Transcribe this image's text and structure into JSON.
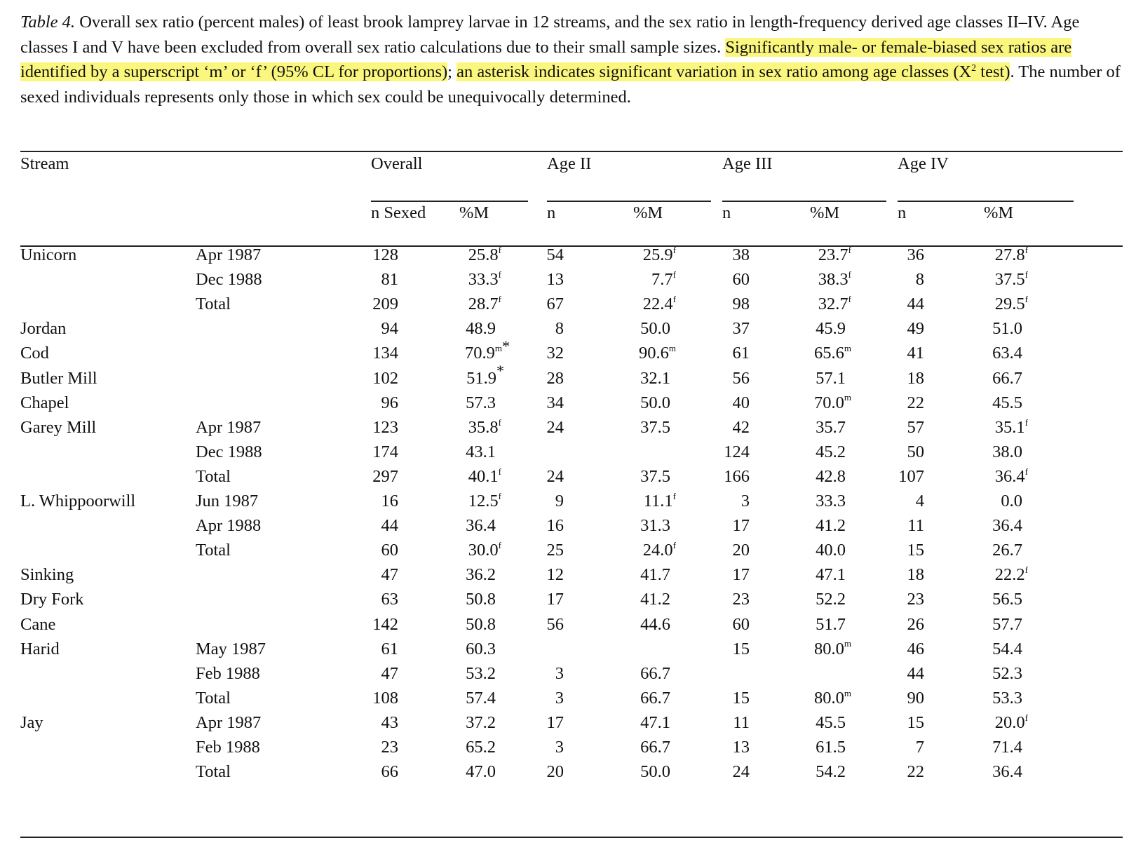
{
  "caption": {
    "label": "Table 4.",
    "text_plain_1": " Overall sex ratio (percent males) of least brook lamprey larvae in 12 streams, and the sex ratio in length-frequency derived age classes II–IV. Age classes I and V have been excluded from overall sex ratio calculations due to their small sample sizes. ",
    "text_highlight_1": "Significantly male- or female-biased sex ratios are identified by a superscript ‘m’ or ‘f’ (95% CL for proportions)",
    "text_plain_2": "; ",
    "text_highlight_2a": "an asterisk indicates significant variation in sex ratio among age classes (X",
    "text_highlight_2_sup": "2",
    "text_highlight_2b": " test)",
    "text_plain_3": ". The number of sexed individuals represents only those in which sex could be unequivocally determined."
  },
  "headers": {
    "stream": "Stream",
    "groups": [
      "Overall",
      "Age II",
      "Age III",
      "Age IV"
    ],
    "sub": [
      "n Sexed",
      "%M",
      "n",
      "%M",
      "n",
      "%M",
      "n",
      "%M"
    ]
  },
  "rows": [
    {
      "stream": "Unicorn",
      "date": "Apr 1987",
      "v": [
        "128",
        "25.8",
        "54",
        "25.9",
        "38",
        "23.7",
        "36",
        "27.8"
      ],
      "s": [
        "",
        "f",
        "",
        "f",
        "",
        "f",
        "",
        "f"
      ]
    },
    {
      "stream": "",
      "date": "Dec 1988",
      "v": [
        "81",
        "33.3",
        "13",
        "7.7",
        "60",
        "38.3",
        "8",
        "37.5"
      ],
      "s": [
        "",
        "f",
        "",
        "f",
        "",
        "f",
        "",
        "f"
      ]
    },
    {
      "stream": "",
      "date": "Total",
      "v": [
        "209",
        "28.7",
        "67",
        "22.4",
        "98",
        "32.7",
        "44",
        "29.5"
      ],
      "s": [
        "",
        "f",
        "",
        "f",
        "",
        "f",
        "",
        "f"
      ]
    },
    {
      "stream": "Jordan",
      "date": "",
      "v": [
        "94",
        "48.9",
        "8",
        "50.0",
        "37",
        "45.9",
        "49",
        "51.0"
      ],
      "s": [
        "",
        "",
        "",
        "",
        "",
        "",
        "",
        ""
      ]
    },
    {
      "stream": "Cod",
      "date": "",
      "v": [
        "134",
        "70.9",
        "32",
        "90.6",
        "61",
        "65.6",
        "41",
        "63.4"
      ],
      "s": [
        "",
        "m*",
        "",
        "m",
        "",
        "m",
        "",
        ""
      ]
    },
    {
      "stream": "Butler Mill",
      "date": "",
      "v": [
        "102",
        "51.9",
        "28",
        "32.1",
        "56",
        "57.1",
        "18",
        "66.7"
      ],
      "s": [
        "",
        "*",
        "",
        "",
        "",
        "",
        "",
        ""
      ]
    },
    {
      "stream": "Chapel",
      "date": "",
      "v": [
        "96",
        "57.3",
        "34",
        "50.0",
        "40",
        "70.0",
        "22",
        "45.5"
      ],
      "s": [
        "",
        "",
        "",
        "",
        "",
        "m",
        "",
        ""
      ]
    },
    {
      "stream": "Garey Mill",
      "date": "Apr 1987",
      "v": [
        "123",
        "35.8",
        "24",
        "37.5",
        "42",
        "35.7",
        "57",
        "35.1"
      ],
      "s": [
        "",
        "f",
        "",
        "",
        "",
        "",
        "",
        "f"
      ]
    },
    {
      "stream": "",
      "date": "Dec 1988",
      "v": [
        "174",
        "43.1",
        "",
        "",
        "124",
        "45.2",
        "50",
        "38.0"
      ],
      "s": [
        "",
        "",
        "",
        "",
        "",
        "",
        "",
        ""
      ]
    },
    {
      "stream": "",
      "date": "Total",
      "v": [
        "297",
        "40.1",
        "24",
        "37.5",
        "166",
        "42.8",
        "107",
        "36.4"
      ],
      "s": [
        "",
        "f",
        "",
        "",
        "",
        "",
        "",
        "f"
      ]
    },
    {
      "stream": "L. Whippoorwill",
      "date": "Jun 1987",
      "v": [
        "16",
        "12.5",
        "9",
        "11.1",
        "3",
        "33.3",
        "4",
        "0.0"
      ],
      "s": [
        "",
        "f",
        "",
        "f",
        "",
        "",
        "",
        ""
      ]
    },
    {
      "stream": "",
      "date": "Apr 1988",
      "v": [
        "44",
        "36.4",
        "16",
        "31.3",
        "17",
        "41.2",
        "11",
        "36.4"
      ],
      "s": [
        "",
        "",
        "",
        "",
        "",
        "",
        "",
        ""
      ]
    },
    {
      "stream": "",
      "date": "Total",
      "v": [
        "60",
        "30.0",
        "25",
        "24.0",
        "20",
        "40.0",
        "15",
        "26.7"
      ],
      "s": [
        "",
        "f",
        "",
        "f",
        "",
        "",
        "",
        ""
      ]
    },
    {
      "stream": "Sinking",
      "date": "",
      "v": [
        "47",
        "36.2",
        "12",
        "41.7",
        "17",
        "47.1",
        "18",
        "22.2"
      ],
      "s": [
        "",
        "",
        "",
        "",
        "",
        "",
        "",
        "f"
      ]
    },
    {
      "stream": "Dry Fork",
      "date": "",
      "v": [
        "63",
        "50.8",
        "17",
        "41.2",
        "23",
        "52.2",
        "23",
        "56.5"
      ],
      "s": [
        "",
        "",
        "",
        "",
        "",
        "",
        "",
        ""
      ]
    },
    {
      "stream": "Cane",
      "date": "",
      "v": [
        "142",
        "50.8",
        "56",
        "44.6",
        "60",
        "51.7",
        "26",
        "57.7"
      ],
      "s": [
        "",
        "",
        "",
        "",
        "",
        "",
        "",
        ""
      ]
    },
    {
      "stream": "Harid",
      "date": "May 1987",
      "v": [
        "61",
        "60.3",
        "",
        "",
        "15",
        "80.0",
        "46",
        "54.4"
      ],
      "s": [
        "",
        "",
        "",
        "",
        "",
        "m",
        "",
        ""
      ]
    },
    {
      "stream": "",
      "date": "Feb 1988",
      "v": [
        "47",
        "53.2",
        "3",
        "66.7",
        "",
        "",
        "44",
        "52.3"
      ],
      "s": [
        "",
        "",
        "",
        "",
        "",
        "",
        "",
        ""
      ]
    },
    {
      "stream": "",
      "date": "Total",
      "v": [
        "108",
        "57.4",
        "3",
        "66.7",
        "15",
        "80.0",
        "90",
        "53.3"
      ],
      "s": [
        "",
        "",
        "",
        "",
        "",
        "m",
        "",
        ""
      ]
    },
    {
      "stream": "Jay",
      "date": "Apr 1987",
      "v": [
        "43",
        "37.2",
        "17",
        "47.1",
        "11",
        "45.5",
        "15",
        "20.0"
      ],
      "s": [
        "",
        "",
        "",
        "",
        "",
        "",
        "",
        "f"
      ]
    },
    {
      "stream": "",
      "date": "Feb 1988",
      "v": [
        "23",
        "65.2",
        "3",
        "66.7",
        "13",
        "61.5",
        "7",
        "71.4"
      ],
      "s": [
        "",
        "",
        "",
        "",
        "",
        "",
        "",
        ""
      ]
    },
    {
      "stream": "",
      "date": "Total",
      "v": [
        "66",
        "47.0",
        "20",
        "50.0",
        "24",
        "54.2",
        "22",
        "36.4"
      ],
      "s": [
        "",
        "",
        "",
        "",
        "",
        "",
        "",
        ""
      ]
    }
  ]
}
